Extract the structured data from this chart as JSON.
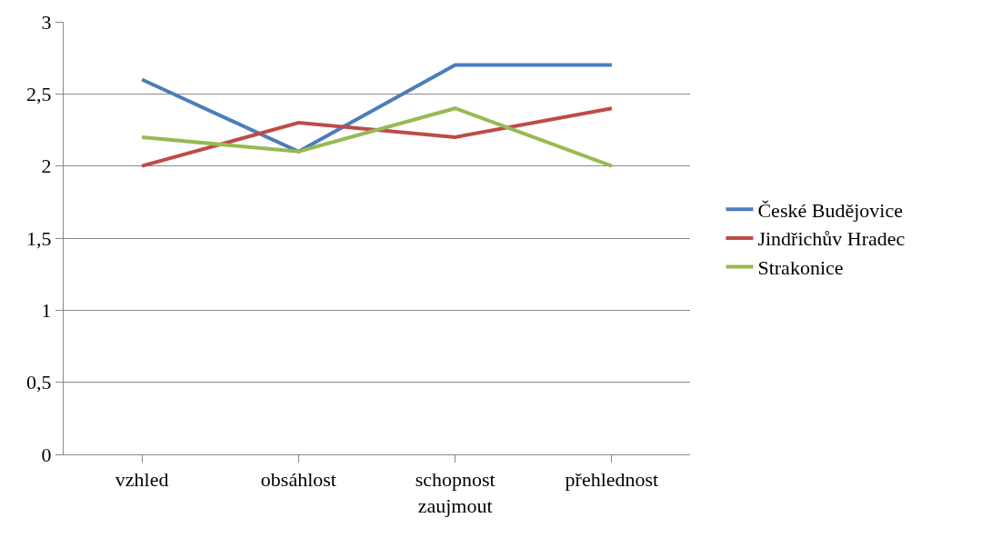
{
  "chart_data": {
    "type": "line",
    "categories": [
      "vzhled",
      "obsáhlost",
      "schopnost zaujmout",
      "přehlednost"
    ],
    "series": [
      {
        "name": "České Budějovice",
        "color": "#4a7ebb",
        "values": [
          2.6,
          2.1,
          2.7,
          2.7
        ]
      },
      {
        "name": "Jindřichův Hradec",
        "color": "#be4b48",
        "values": [
          2.0,
          2.3,
          2.2,
          2.4
        ]
      },
      {
        "name": "Strakonice",
        "color": "#98b954",
        "values": [
          2.2,
          2.1,
          2.4,
          2.0
        ]
      }
    ],
    "ylim": [
      0,
      3
    ],
    "yticks": [
      0,
      {
        "value": 0.5,
        "label": "0,5"
      },
      1,
      {
        "value": 1.5,
        "label": "1,5"
      },
      2,
      {
        "value": 2.5,
        "label": "2,5"
      },
      3
    ],
    "grid": "y",
    "legend": "right",
    "marker": "none",
    "line_style": "solid"
  }
}
